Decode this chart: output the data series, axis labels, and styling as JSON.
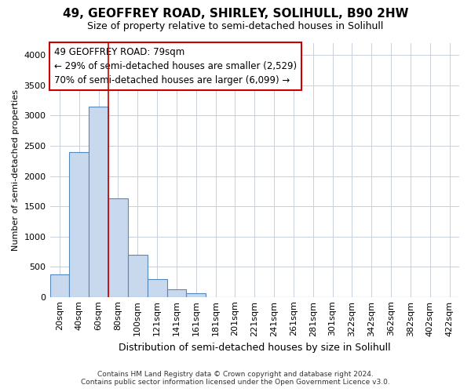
{
  "title": "49, GEOFFREY ROAD, SHIRLEY, SOLIHULL, B90 2HW",
  "subtitle": "Size of property relative to semi-detached houses in Solihull",
  "xlabel": "Distribution of semi-detached houses by size in Solihull",
  "ylabel": "Number of semi-detached properties",
  "footer1": "Contains HM Land Registry data © Crown copyright and database right 2024.",
  "footer2": "Contains public sector information licensed under the Open Government Licence v3.0.",
  "bar_labels": [
    "20sqm",
    "40sqm",
    "60sqm",
    "80sqm",
    "100sqm",
    "121sqm",
    "141sqm",
    "161sqm",
    "181sqm",
    "201sqm",
    "221sqm",
    "241sqm",
    "261sqm",
    "281sqm",
    "301sqm",
    "322sqm",
    "342sqm",
    "362sqm",
    "382sqm",
    "402sqm",
    "422sqm"
  ],
  "bar_values": [
    370,
    2400,
    3150,
    1625,
    700,
    290,
    130,
    65,
    0,
    0,
    0,
    0,
    0,
    0,
    0,
    0,
    0,
    0,
    0,
    0,
    0
  ],
  "bar_color": "#c8d8ed",
  "bar_edge_color": "#5588bb",
  "highlight_line_color": "#cc0000",
  "property_label": "49 GEOFFREY ROAD: 79sqm",
  "pct_smaller": 29,
  "count_smaller": 2529,
  "pct_larger": 70,
  "count_larger": 6099,
  "annotation_box_color": "white",
  "annotation_box_edge": "#cc0000",
  "ylim": [
    0,
    4200
  ],
  "yticks": [
    0,
    500,
    1000,
    1500,
    2000,
    2500,
    3000,
    3500,
    4000
  ],
  "grid_color": "#c8d0dc",
  "background_color": "#ffffff",
  "plot_bg_color": "#ffffff",
  "title_fontsize": 11,
  "subtitle_fontsize": 9,
  "xlabel_fontsize": 9,
  "ylabel_fontsize": 8,
  "tick_fontsize": 8,
  "annotation_fontsize": 8.5
}
